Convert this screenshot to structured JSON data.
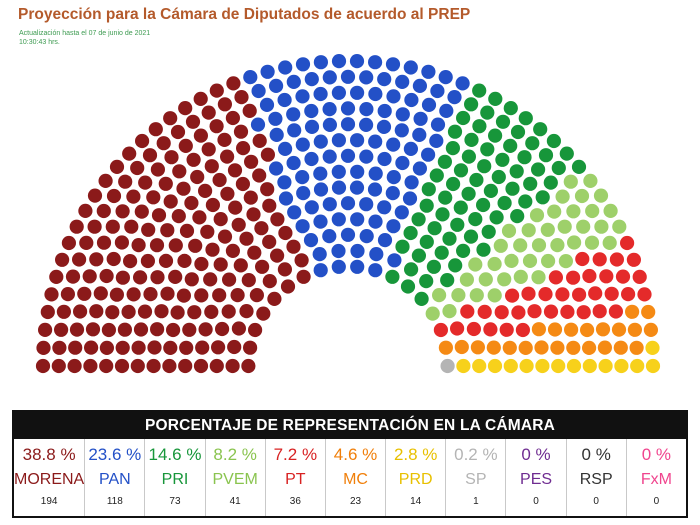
{
  "header": {
    "title": "Proyección para la Cámara de Diputados de acuerdo al PREP",
    "update_line1": "Actualización hasta el 07 de junio de 2021",
    "update_line2": "10:30:43 hrs."
  },
  "table": {
    "title": "PORCENTAJE DE REPRESENTACIÓN EN LA CÁMARA"
  },
  "chart_data": {
    "type": "parliament",
    "total_seats": 500,
    "parties": [
      {
        "name": "MORENA",
        "percent": "38.8 %",
        "seats": 194,
        "color": "#8b1a1a",
        "text_color": "#8b1a1a"
      },
      {
        "name": "PAN",
        "percent": "23.6 %",
        "seats": 118,
        "color": "#2350c7",
        "text_color": "#2350c7"
      },
      {
        "name": "PRI",
        "percent": "14.6 %",
        "seats": 73,
        "color": "#17963a",
        "text_color": "#17963a"
      },
      {
        "name": "PVEM",
        "percent": "8.2 %",
        "seats": 41,
        "color": "#9ed06a",
        "text_color": "#8ac44f"
      },
      {
        "name": "PT",
        "percent": "7.2 %",
        "seats": 36,
        "color": "#e42a2a",
        "text_color": "#d82222"
      },
      {
        "name": "MC",
        "percent": "4.6 %",
        "seats": 23,
        "color": "#f58a14",
        "text_color": "#f07f0a"
      },
      {
        "name": "PRD",
        "percent": "2.8 %",
        "seats": 14,
        "color": "#f7d11b",
        "text_color": "#e8c000"
      },
      {
        "name": "SP",
        "percent": "0.2 %",
        "seats": 1,
        "color": "#b4b4b4",
        "text_color": "#b4b4b4"
      },
      {
        "name": "PES",
        "percent": "0 %",
        "seats": 0,
        "color": "#6f2c91",
        "text_color": "#6f2c91"
      },
      {
        "name": "RSP",
        "percent": "0 %",
        "seats": 0,
        "color": "#333333",
        "text_color": "#333333"
      },
      {
        "name": "FxM",
        "percent": "0 %",
        "seats": 0,
        "color": "#f0458e",
        "text_color": "#f0458e"
      }
    ]
  }
}
